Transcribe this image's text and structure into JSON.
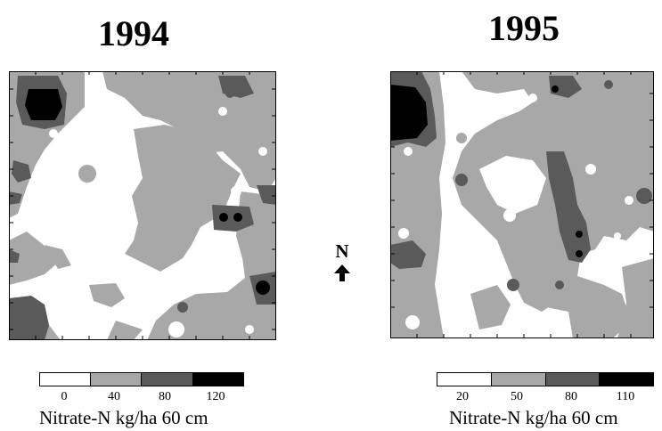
{
  "map_1994": {
    "title": "1994",
    "legend": {
      "ticks": [
        "0",
        "40",
        "80",
        "120"
      ],
      "unit": "Nitrate-N kg/ha 60 cm"
    }
  },
  "map_1995": {
    "title": "1995",
    "legend": {
      "ticks": [
        "20",
        "50",
        "80",
        "110"
      ],
      "unit": "Nitrate-N kg/ha 60 cm"
    }
  },
  "north_arrow": {
    "label": "N"
  },
  "colors": {
    "class1": "#ffffff",
    "class2": "#a8a8a8",
    "class3": "#5a5a5a",
    "class4": "#000000"
  }
}
